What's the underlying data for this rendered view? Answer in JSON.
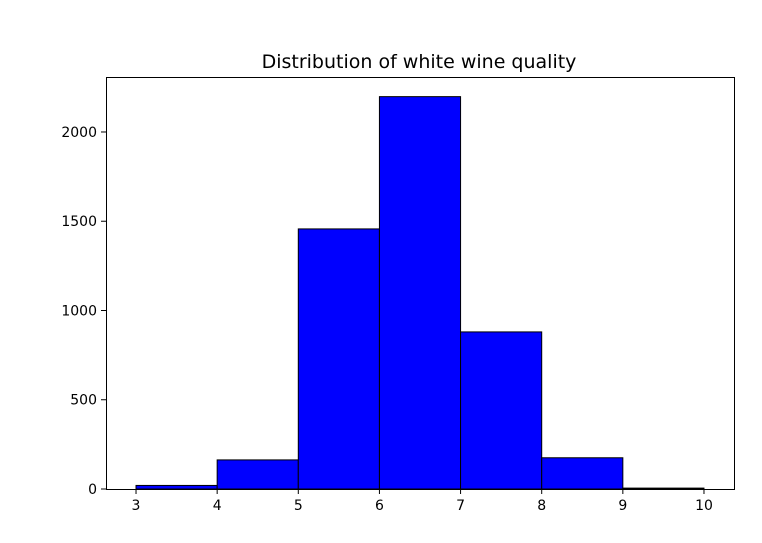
{
  "chart_data": {
    "type": "bar",
    "title": "Distribution of white wine quality",
    "xlabel": "",
    "ylabel": "",
    "bin_edges": [
      3,
      4,
      5,
      6,
      7,
      8,
      9,
      10
    ],
    "values": [
      20,
      163,
      1457,
      2198,
      880,
      175,
      5
    ],
    "xlim": [
      2.63,
      10.37
    ],
    "ylim": [
      0,
      2308
    ],
    "x_ticks": [
      3,
      4,
      5,
      6,
      7,
      8,
      9,
      10
    ],
    "y_ticks": [
      0,
      500,
      1000,
      1500,
      2000
    ],
    "bar_color": "#0000ff",
    "edge_color": "#000000",
    "grid": false,
    "legend": "none"
  }
}
